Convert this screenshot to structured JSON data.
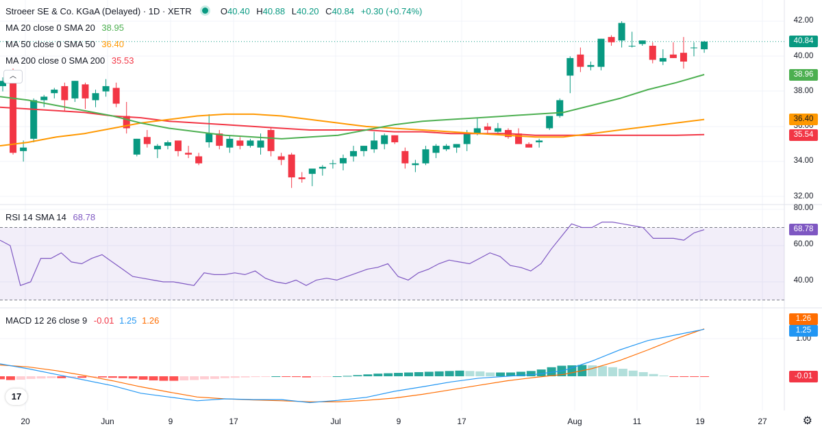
{
  "header": {
    "title": "Stroeer SE & Co. KGaA (Delayed) · 1D · XETR",
    "o_label": "O",
    "o": "40.40",
    "h_label": "H",
    "h": "40.88",
    "l_label": "L",
    "l": "40.20",
    "c_label": "C",
    "c": "40.84",
    "change": "+0.30 (+0.74%)"
  },
  "indicators": {
    "ma20": {
      "label": "MA 20 close 0 SMA 20",
      "value": "38.95",
      "badge": "38.96",
      "color": "#4caf50"
    },
    "ma50": {
      "label": "MA 50 close 0 SMA 50",
      "value": "36.40",
      "badge": "36.40",
      "color": "#ff9800"
    },
    "ma200": {
      "label": "MA 200 close 0 SMA 200",
      "value": "35.53",
      "badge": "35.54",
      "color": "#f23645"
    },
    "rsi": {
      "label": "RSI 14 SMA 14",
      "value": "68.78",
      "badge": "68.78",
      "color": "#7e57c2"
    },
    "macd": {
      "label": "MACD 12 26 close 9",
      "hist": "-0.01",
      "macd": "1.25",
      "signal": "1.26",
      "badge_signal": "1.26",
      "badge_macd": "1.25",
      "badge_hist": "-0.01",
      "macd_color": "#2196f3",
      "signal_color": "#ff6d00"
    }
  },
  "price_badge": "40.84",
  "colors": {
    "up": "#089981",
    "down": "#f23645",
    "hist_up_strong": "#26a69a",
    "hist_up_weak": "#b2dfdb",
    "hist_down_strong": "#ff5252",
    "hist_down_weak": "#ffcdd2"
  },
  "axes": {
    "price_ticks": [
      "42.00",
      "40.00",
      "38.00",
      "36.00",
      "34.00",
      "32.00"
    ],
    "rsi_ticks": [
      "80.00",
      "60.00",
      "40.00"
    ],
    "macd_ticks": [
      "1.00"
    ],
    "x_ticks": [
      "20",
      "Jun",
      "9",
      "17",
      "Jul",
      "9",
      "17",
      "Aug",
      "11",
      "19",
      "27"
    ]
  },
  "logo_text": "17",
  "chart_data": {
    "type": "candlestick",
    "title": "Stroeer SE & Co. KGaA (Delayed) · 1D · XETR",
    "y_range": [
      31.8,
      42.3
    ],
    "candles": [
      {
        "o": 38.3,
        "h": 38.8,
        "l": 38.0,
        "c": 38.6
      },
      {
        "o": 38.8,
        "h": 39.3,
        "l": 34.4,
        "c": 34.5
      },
      {
        "o": 34.6,
        "h": 35.2,
        "l": 34.0,
        "c": 34.8
      },
      {
        "o": 35.3,
        "h": 37.6,
        "l": 35.1,
        "c": 37.5
      },
      {
        "o": 37.5,
        "h": 37.8,
        "l": 37.1,
        "c": 37.7
      },
      {
        "o": 37.9,
        "h": 38.2,
        "l": 37.6,
        "c": 38.1
      },
      {
        "o": 38.3,
        "h": 38.5,
        "l": 36.9,
        "c": 37.5
      },
      {
        "o": 37.6,
        "h": 38.6,
        "l": 37.4,
        "c": 38.6
      },
      {
        "o": 38.4,
        "h": 38.5,
        "l": 37.0,
        "c": 37.6
      },
      {
        "o": 37.5,
        "h": 38.1,
        "l": 37.1,
        "c": 37.9
      },
      {
        "o": 38.0,
        "h": 38.7,
        "l": 37.7,
        "c": 38.3
      },
      {
        "o": 38.2,
        "h": 38.5,
        "l": 37.1,
        "c": 37.3
      },
      {
        "o": 36.6,
        "h": 37.4,
        "l": 35.6,
        "c": 35.9
      },
      {
        "o": 34.4,
        "h": 35.3,
        "l": 34.3,
        "c": 35.3
      },
      {
        "o": 35.4,
        "h": 35.8,
        "l": 34.8,
        "c": 35.0
      },
      {
        "o": 34.7,
        "h": 35.0,
        "l": 34.2,
        "c": 34.9
      },
      {
        "o": 34.9,
        "h": 35.2,
        "l": 34.7,
        "c": 35.1
      },
      {
        "o": 35.2,
        "h": 35.2,
        "l": 34.3,
        "c": 34.6
      },
      {
        "o": 34.5,
        "h": 34.9,
        "l": 34.2,
        "c": 34.4
      },
      {
        "o": 34.3,
        "h": 34.5,
        "l": 33.8,
        "c": 33.9
      },
      {
        "o": 35.1,
        "h": 36.7,
        "l": 34.8,
        "c": 35.6
      },
      {
        "o": 35.6,
        "h": 35.8,
        "l": 34.7,
        "c": 34.9
      },
      {
        "o": 34.8,
        "h": 35.5,
        "l": 34.5,
        "c": 35.3
      },
      {
        "o": 35.2,
        "h": 35.4,
        "l": 34.7,
        "c": 34.9
      },
      {
        "o": 34.9,
        "h": 35.3,
        "l": 34.8,
        "c": 35.2
      },
      {
        "o": 34.8,
        "h": 35.6,
        "l": 34.4,
        "c": 35.2
      },
      {
        "o": 35.8,
        "h": 35.9,
        "l": 34.3,
        "c": 34.6
      },
      {
        "o": 34.3,
        "h": 34.5,
        "l": 33.8,
        "c": 34.1
      },
      {
        "o": 34.4,
        "h": 34.5,
        "l": 32.5,
        "c": 33.1
      },
      {
        "o": 33.1,
        "h": 33.4,
        "l": 32.8,
        "c": 33.0
      },
      {
        "o": 33.3,
        "h": 33.5,
        "l": 32.6,
        "c": 33.6
      },
      {
        "o": 33.6,
        "h": 33.8,
        "l": 33.2,
        "c": 33.7
      },
      {
        "o": 33.9,
        "h": 34.1,
        "l": 33.6,
        "c": 33.9
      },
      {
        "o": 33.9,
        "h": 34.4,
        "l": 33.5,
        "c": 34.2
      },
      {
        "o": 34.3,
        "h": 34.9,
        "l": 34.0,
        "c": 34.6
      },
      {
        "o": 34.6,
        "h": 34.9,
        "l": 34.3,
        "c": 34.9
      },
      {
        "o": 34.7,
        "h": 35.7,
        "l": 34.5,
        "c": 35.2
      },
      {
        "o": 35.0,
        "h": 35.6,
        "l": 34.7,
        "c": 35.5
      },
      {
        "o": 35.5,
        "h": 35.5,
        "l": 35.0,
        "c": 35.1
      },
      {
        "o": 34.6,
        "h": 34.8,
        "l": 33.6,
        "c": 33.9
      },
      {
        "o": 33.8,
        "h": 34.1,
        "l": 33.4,
        "c": 33.9
      },
      {
        "o": 33.9,
        "h": 34.9,
        "l": 33.8,
        "c": 34.7
      },
      {
        "o": 34.5,
        "h": 35.0,
        "l": 34.2,
        "c": 34.9
      },
      {
        "o": 34.7,
        "h": 35.0,
        "l": 34.6,
        "c": 34.9
      },
      {
        "o": 34.8,
        "h": 35.0,
        "l": 34.5,
        "c": 35.0
      },
      {
        "o": 35.0,
        "h": 35.8,
        "l": 34.6,
        "c": 35.6
      },
      {
        "o": 35.6,
        "h": 36.5,
        "l": 35.5,
        "c": 35.9
      },
      {
        "o": 36.0,
        "h": 36.2,
        "l": 35.6,
        "c": 35.8
      },
      {
        "o": 35.7,
        "h": 36.2,
        "l": 35.6,
        "c": 35.9
      },
      {
        "o": 35.8,
        "h": 35.9,
        "l": 35.3,
        "c": 35.4
      },
      {
        "o": 35.6,
        "h": 35.9,
        "l": 35.0,
        "c": 35.0
      },
      {
        "o": 35.0,
        "h": 35.1,
        "l": 34.8,
        "c": 34.8
      },
      {
        "o": 35.1,
        "h": 35.3,
        "l": 34.8,
        "c": 35.2
      },
      {
        "o": 35.9,
        "h": 36.5,
        "l": 35.8,
        "c": 36.6
      },
      {
        "o": 36.6,
        "h": 37.6,
        "l": 36.5,
        "c": 37.5
      },
      {
        "o": 38.9,
        "h": 40.0,
        "l": 37.9,
        "c": 39.9
      },
      {
        "o": 40.1,
        "h": 40.5,
        "l": 39.1,
        "c": 39.4
      },
      {
        "o": 39.4,
        "h": 39.7,
        "l": 39.2,
        "c": 39.5
      },
      {
        "o": 39.4,
        "h": 41.0,
        "l": 39.2,
        "c": 41.0
      },
      {
        "o": 41.1,
        "h": 41.2,
        "l": 40.6,
        "c": 40.8
      },
      {
        "o": 40.9,
        "h": 42.0,
        "l": 40.5,
        "c": 41.9
      },
      {
        "o": 40.6,
        "h": 41.4,
        "l": 40.5,
        "c": 40.6
      },
      {
        "o": 40.7,
        "h": 40.9,
        "l": 40.6,
        "c": 40.9
      },
      {
        "o": 40.6,
        "h": 40.8,
        "l": 39.6,
        "c": 39.8
      },
      {
        "o": 39.7,
        "h": 40.4,
        "l": 39.5,
        "c": 39.9
      },
      {
        "o": 40.1,
        "h": 40.8,
        "l": 39.9,
        "c": 39.9
      },
      {
        "o": 40.2,
        "h": 41.1,
        "l": 39.3,
        "c": 39.7
      },
      {
        "o": 40.5,
        "h": 40.8,
        "l": 40.0,
        "c": 40.5
      },
      {
        "o": 40.4,
        "h": 40.88,
        "l": 40.2,
        "c": 40.84
      }
    ],
    "ma20": [
      37.7,
      37.5,
      37.2,
      36.9,
      36.6,
      36.2,
      35.9,
      35.7,
      35.5,
      35.4,
      35.3,
      35.4,
      35.5,
      35.8,
      36.1,
      36.3,
      36.4,
      36.5,
      36.6,
      36.7,
      36.8,
      37.2,
      37.6,
      38.1,
      38.5,
      38.96
    ],
    "ma50": [
      34.9,
      35.1,
      35.4,
      35.6,
      35.9,
      36.2,
      36.4,
      36.6,
      36.7,
      36.7,
      36.6,
      36.4,
      36.2,
      36.0,
      35.9,
      35.8,
      35.7,
      35.6,
      35.5,
      35.4,
      35.4,
      35.6,
      35.8,
      36.0,
      36.2,
      36.4
    ],
    "ma200": [
      37.1,
      37.0,
      36.9,
      36.8,
      36.6,
      36.5,
      36.3,
      36.2,
      36.1,
      36.0,
      35.9,
      35.8,
      35.8,
      35.8,
      35.7,
      35.7,
      35.6,
      35.6,
      35.6,
      35.5,
      35.5,
      35.5,
      35.5,
      35.5,
      35.5,
      35.54
    ],
    "rsi": {
      "y_range": [
        30,
        80
      ],
      "overbought": 70,
      "oversold": 30,
      "values": [
        63,
        60,
        38,
        40,
        53,
        53,
        56,
        51,
        50,
        53,
        55,
        51,
        47,
        43,
        42,
        41,
        40,
        40,
        39,
        38,
        45,
        44,
        44,
        45,
        44,
        46,
        42,
        40,
        39,
        41,
        38,
        41,
        42,
        41,
        43,
        45,
        47,
        48,
        50,
        43,
        41,
        45,
        47,
        50,
        52,
        51,
        50,
        53,
        56,
        54,
        49,
        48,
        46,
        50,
        58,
        65,
        72,
        70,
        70,
        73,
        73,
        72,
        71,
        70,
        64,
        64,
        64,
        63,
        67,
        68.78
      ]
    },
    "macd": {
      "y_range": [
        -0.5,
        1.5
      ],
      "macd": [
        0.33,
        0.2,
        0.05,
        -0.1,
        -0.25,
        -0.45,
        -0.55,
        -0.65,
        -0.6,
        -0.62,
        -0.62,
        -0.7,
        -0.64,
        -0.56,
        -0.4,
        -0.28,
        -0.15,
        -0.05,
        0.0,
        0.05,
        0.15,
        0.4,
        0.7,
        0.95,
        1.1,
        1.25
      ],
      "signal": [
        0.3,
        0.25,
        0.15,
        0.02,
        -0.12,
        -0.28,
        -0.42,
        -0.55,
        -0.6,
        -0.63,
        -0.65,
        -0.68,
        -0.68,
        -0.64,
        -0.58,
        -0.48,
        -0.36,
        -0.24,
        -0.12,
        -0.03,
        0.05,
        0.2,
        0.42,
        0.7,
        1.0,
        1.26
      ],
      "hist": [
        -0.08,
        -0.1,
        -0.09,
        -0.07,
        -0.06,
        -0.05,
        -0.05,
        -0.04,
        -0.04,
        -0.03,
        -0.03,
        -0.04,
        -0.05,
        -0.06,
        -0.09,
        -0.11,
        -0.12,
        -0.12,
        -0.11,
        -0.1,
        -0.08,
        -0.07,
        -0.05,
        -0.04,
        -0.03,
        -0.02,
        -0.01,
        0.0,
        -0.01,
        -0.02,
        -0.03,
        -0.02,
        -0.01,
        0.0,
        0.01,
        0.03,
        0.05,
        0.07,
        0.08,
        0.09,
        0.1,
        0.11,
        0.12,
        0.13,
        0.14,
        0.15,
        0.14,
        0.13,
        0.1,
        0.1,
        0.1,
        0.12,
        0.14,
        0.18,
        0.24,
        0.28,
        0.29,
        0.3,
        0.29,
        0.27,
        0.24,
        0.2,
        0.15,
        0.11,
        0.06,
        0.02,
        -0.01,
        -0.01,
        -0.01,
        -0.01
      ]
    }
  }
}
